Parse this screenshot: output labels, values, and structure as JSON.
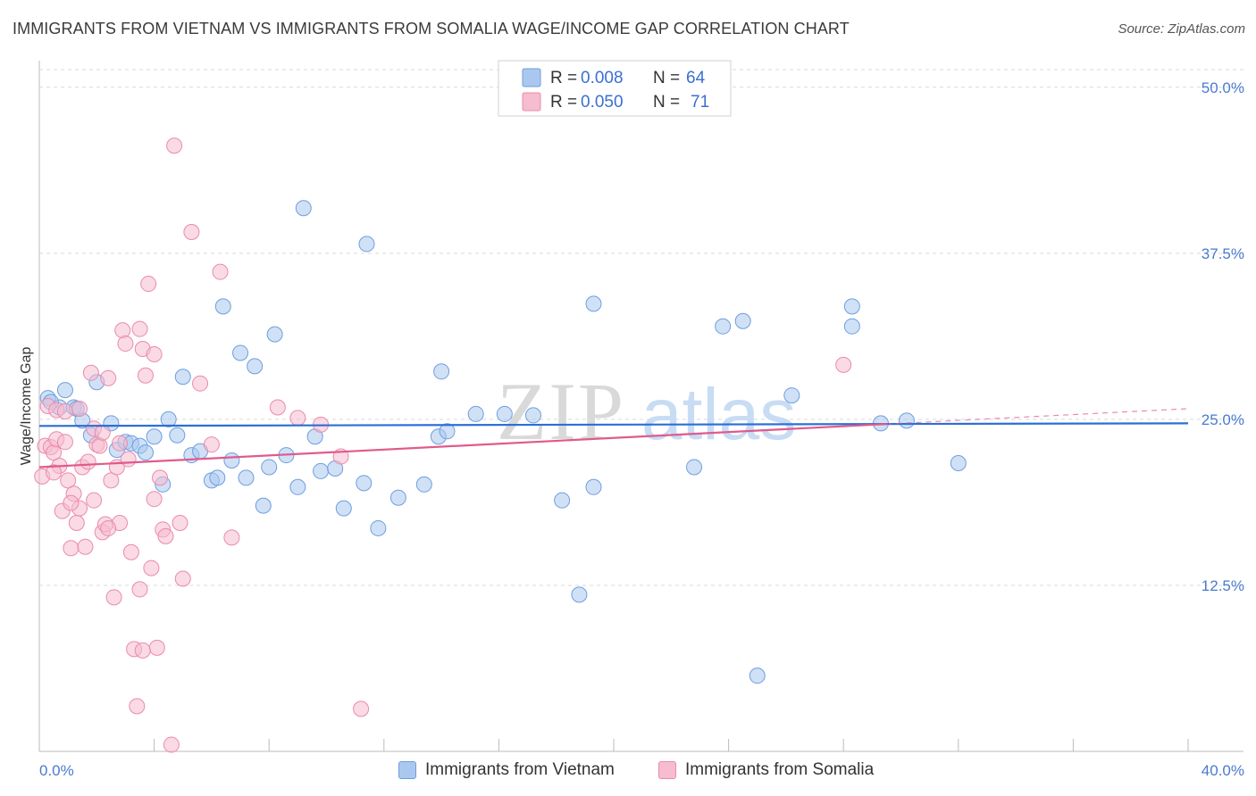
{
  "header": {
    "title": "IMMIGRANTS FROM VIETNAM VS IMMIGRANTS FROM SOMALIA WAGE/INCOME GAP CORRELATION CHART",
    "source": "Source: ZipAtlas.com"
  },
  "watermark": {
    "zip": "ZIP",
    "atlas": "atlas"
  },
  "colors": {
    "vietnam_fill": "#aac8ef",
    "vietnam_stroke": "#6d9ee0",
    "vietnam_line": "#2c6fd6",
    "somalia_fill": "#f6bccf",
    "somalia_stroke": "#ea8bab",
    "somalia_line": "#e05a8c",
    "axis_label": "#4a7ad0",
    "grid": "#d9d9d9"
  },
  "legend": {
    "rows": [
      {
        "r_label": "R =",
        "r_value": "0.008",
        "n_label": "N =",
        "n_value": "64"
      },
      {
        "r_label": "R =",
        "r_value": "0.050",
        "n_label": "N =",
        "n_value": "71"
      }
    ]
  },
  "chart_data": {
    "type": "scatter",
    "title": "IMMIGRANTS FROM VIETNAM VS IMMIGRANTS FROM SOMALIA WAGE/INCOME GAP CORRELATION CHART",
    "xlabel": "",
    "ylabel": "Wage/Income Gap",
    "xlim": [
      0,
      40
    ],
    "ylim": [
      0,
      52
    ],
    "x_tick_labels": [
      "0.0%",
      "40.0%"
    ],
    "y_tick_labels": [
      "12.5%",
      "25.0%",
      "37.5%",
      "50.0%"
    ],
    "y_ticks": [
      12.5,
      25.0,
      37.5,
      50.0
    ],
    "grid": true,
    "legend_position": "bottom-center",
    "series": [
      {
        "name": "Immigrants from Vietnam",
        "r": 0.008,
        "n": 64,
        "trend": {
          "y_at_x0": 24.5,
          "y_at_x40": 24.7
        },
        "points": [
          [
            0.3,
            26.6
          ],
          [
            0.7,
            25.9
          ],
          [
            0.9,
            27.2
          ],
          [
            1.2,
            25.9
          ],
          [
            1.5,
            24.9
          ],
          [
            1.8,
            23.8
          ],
          [
            2.0,
            27.8
          ],
          [
            2.5,
            24.7
          ],
          [
            2.7,
            22.7
          ],
          [
            3.0,
            23.3
          ],
          [
            3.2,
            23.2
          ],
          [
            3.5,
            23.0
          ],
          [
            3.7,
            22.5
          ],
          [
            4.0,
            23.7
          ],
          [
            4.3,
            20.1
          ],
          [
            4.5,
            25.0
          ],
          [
            4.8,
            23.8
          ],
          [
            5.0,
            28.2
          ],
          [
            5.3,
            22.3
          ],
          [
            5.6,
            22.6
          ],
          [
            6.0,
            20.4
          ],
          [
            6.2,
            20.6
          ],
          [
            6.4,
            33.5
          ],
          [
            6.7,
            21.9
          ],
          [
            7.0,
            30.0
          ],
          [
            7.2,
            20.6
          ],
          [
            7.5,
            29.0
          ],
          [
            7.8,
            18.5
          ],
          [
            8.0,
            21.4
          ],
          [
            8.2,
            31.4
          ],
          [
            8.6,
            22.3
          ],
          [
            9.0,
            19.9
          ],
          [
            9.2,
            40.9
          ],
          [
            9.6,
            23.7
          ],
          [
            9.8,
            21.1
          ],
          [
            10.3,
            21.3
          ],
          [
            10.6,
            18.3
          ],
          [
            11.3,
            20.2
          ],
          [
            11.4,
            38.2
          ],
          [
            11.8,
            16.8
          ],
          [
            12.5,
            19.1
          ],
          [
            13.4,
            20.1
          ],
          [
            13.9,
            23.7
          ],
          [
            14.0,
            28.6
          ],
          [
            14.2,
            24.1
          ],
          [
            15.2,
            25.4
          ],
          [
            16.2,
            25.4
          ],
          [
            17.2,
            25.3
          ],
          [
            18.2,
            18.9
          ],
          [
            18.8,
            11.8
          ],
          [
            19.3,
            33.7
          ],
          [
            19.3,
            19.9
          ],
          [
            22.8,
            21.4
          ],
          [
            23.8,
            32.0
          ],
          [
            24.5,
            32.4
          ],
          [
            25.0,
            5.7
          ],
          [
            26.2,
            26.8
          ],
          [
            28.3,
            33.5
          ],
          [
            28.3,
            32.0
          ],
          [
            29.3,
            24.7
          ],
          [
            30.2,
            24.9
          ],
          [
            32.0,
            21.7
          ],
          [
            0.4,
            26.3
          ],
          [
            1.3,
            25.8
          ]
        ]
      },
      {
        "name": "Immigrants from Somalia",
        "r": 0.05,
        "n": 71,
        "trend": {
          "y_at_x0": 21.4,
          "y_at_x40": 25.8,
          "solid_until_x": 29.5
        },
        "points": [
          [
            0.1,
            20.7
          ],
          [
            0.2,
            23.0
          ],
          [
            0.4,
            22.9
          ],
          [
            0.5,
            22.5
          ],
          [
            0.6,
            23.5
          ],
          [
            0.7,
            21.5
          ],
          [
            0.8,
            18.1
          ],
          [
            0.9,
            23.3
          ],
          [
            1.0,
            20.4
          ],
          [
            1.1,
            15.3
          ],
          [
            1.2,
            19.4
          ],
          [
            1.3,
            17.2
          ],
          [
            1.4,
            18.3
          ],
          [
            1.5,
            21.4
          ],
          [
            1.6,
            15.4
          ],
          [
            1.8,
            28.5
          ],
          [
            1.9,
            24.3
          ],
          [
            2.0,
            23.1
          ],
          [
            2.1,
            23.0
          ],
          [
            2.2,
            16.5
          ],
          [
            2.3,
            17.1
          ],
          [
            2.4,
            28.1
          ],
          [
            2.5,
            20.4
          ],
          [
            2.6,
            11.6
          ],
          [
            2.7,
            21.4
          ],
          [
            2.8,
            17.2
          ],
          [
            2.9,
            31.7
          ],
          [
            3.0,
            30.7
          ],
          [
            3.1,
            22.0
          ],
          [
            3.2,
            15.0
          ],
          [
            3.3,
            7.7
          ],
          [
            3.4,
            3.4
          ],
          [
            3.5,
            12.2
          ],
          [
            3.6,
            30.3
          ],
          [
            3.7,
            28.3
          ],
          [
            3.8,
            35.2
          ],
          [
            3.9,
            13.8
          ],
          [
            4.0,
            19.0
          ],
          [
            4.1,
            7.8
          ],
          [
            4.2,
            20.6
          ],
          [
            4.3,
            16.7
          ],
          [
            4.4,
            16.2
          ],
          [
            4.6,
            0.5
          ],
          [
            4.7,
            45.6
          ],
          [
            4.9,
            17.2
          ],
          [
            5.0,
            13.0
          ],
          [
            5.3,
            39.1
          ],
          [
            5.6,
            27.7
          ],
          [
            6.0,
            23.1
          ],
          [
            6.3,
            36.1
          ],
          [
            6.7,
            16.1
          ],
          [
            8.3,
            25.9
          ],
          [
            9.0,
            25.1
          ],
          [
            9.8,
            24.6
          ],
          [
            10.5,
            22.2
          ],
          [
            11.2,
            3.2
          ],
          [
            28.0,
            29.1
          ],
          [
            0.3,
            26.0
          ],
          [
            0.6,
            25.7
          ],
          [
            1.7,
            21.8
          ],
          [
            2.2,
            24.0
          ],
          [
            3.5,
            31.8
          ],
          [
            4.0,
            29.9
          ],
          [
            0.9,
            25.6
          ],
          [
            1.4,
            25.8
          ],
          [
            2.8,
            23.2
          ],
          [
            3.6,
            7.6
          ],
          [
            1.9,
            18.9
          ],
          [
            0.5,
            21.0
          ],
          [
            1.1,
            18.7
          ],
          [
            2.4,
            16.8
          ]
        ]
      }
    ]
  },
  "bottom_legend": {
    "items": [
      {
        "label": "Immigrants from Vietnam"
      },
      {
        "label": "Immigrants from Somalia"
      }
    ]
  }
}
